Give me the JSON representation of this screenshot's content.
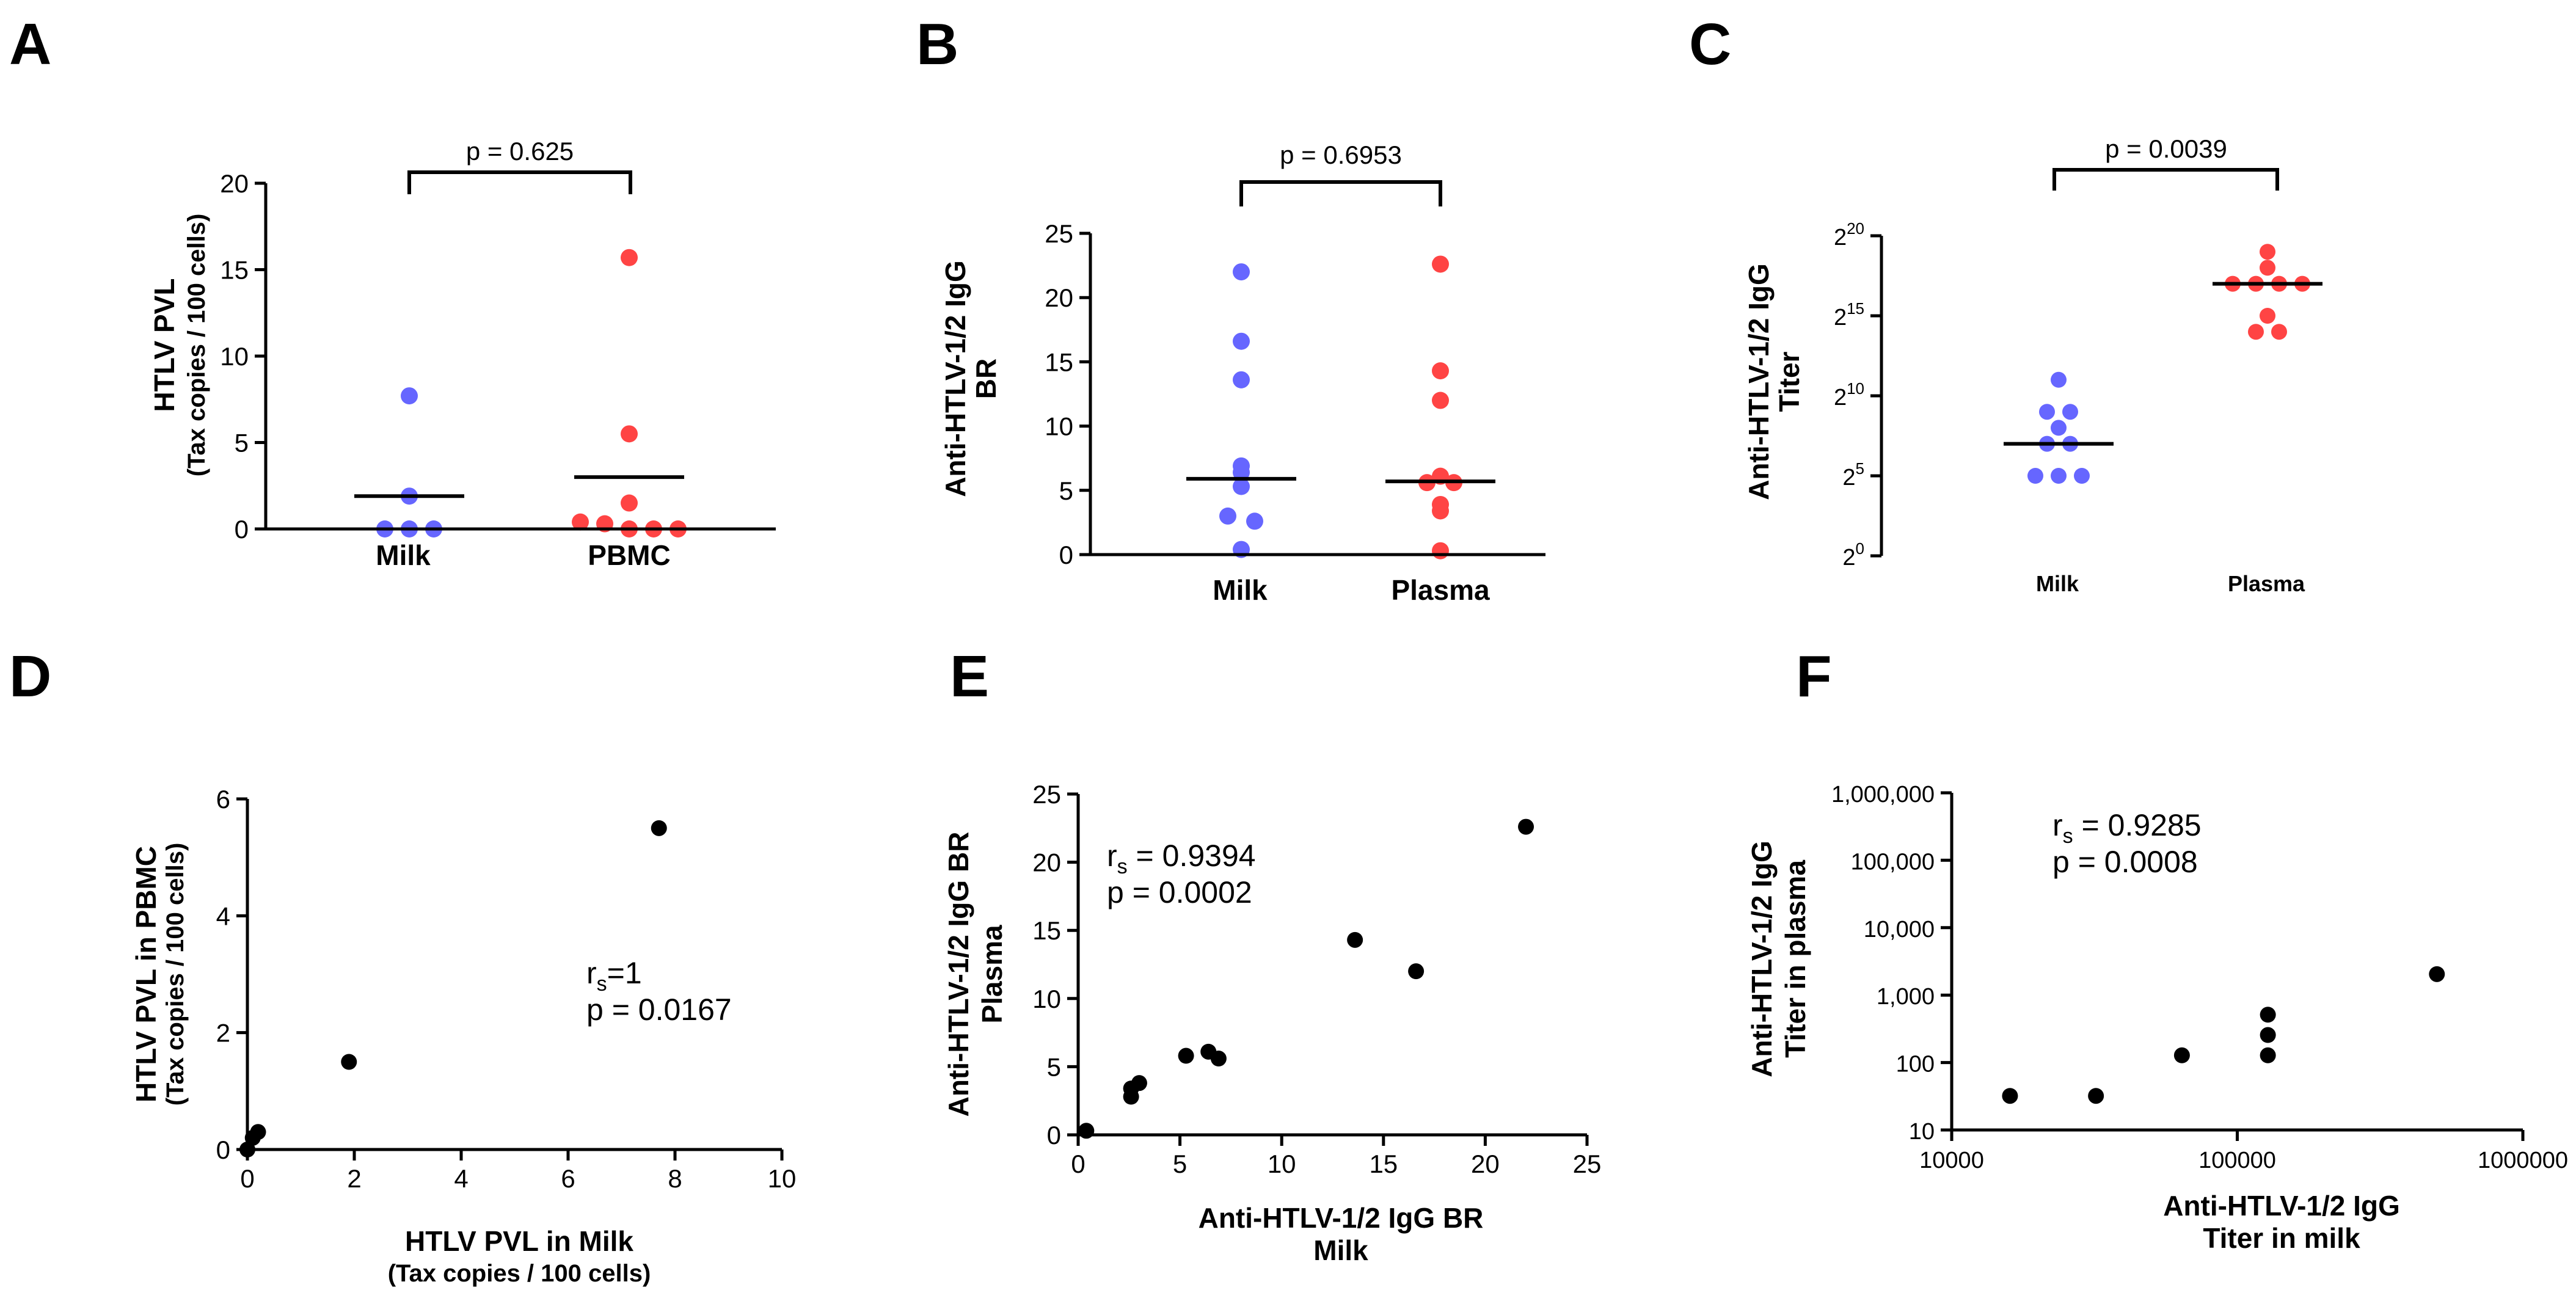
{
  "colors": {
    "milk": "#6666ff",
    "other": "#ff4444",
    "black": "#000000"
  },
  "chart_data": [
    {
      "panel": "A",
      "type": "scatter",
      "categories": [
        "Milk",
        "PBMC"
      ],
      "ylabel": [
        "HTLV PVL",
        "(Tax copies / 100 cells)"
      ],
      "ylim": [
        0,
        20
      ],
      "yticks": [
        "0",
        "5",
        "10",
        "15",
        "20"
      ],
      "ytick_values": [
        0,
        5,
        10,
        15,
        20
      ],
      "series": [
        {
          "category": "Milk",
          "values": [
            7.7,
            1.9,
            0,
            0,
            0
          ],
          "median": 1.9
        },
        {
          "category": "PBMC",
          "values": [
            15.7,
            5.5,
            1.5,
            0.4,
            0.3,
            0,
            0,
            0
          ],
          "median": 3.0
        }
      ],
      "pvalue": "p = 0.625"
    },
    {
      "panel": "B",
      "type": "scatter",
      "categories": [
        "Milk",
        "Plasma"
      ],
      "ylabel": [
        "Anti-HTLV-1/2 IgG",
        "BR"
      ],
      "ylim": [
        0,
        25
      ],
      "yticks": [
        "0",
        "5",
        "10",
        "15",
        "20",
        "25"
      ],
      "ytick_values": [
        0,
        5,
        10,
        15,
        20,
        25
      ],
      "series": [
        {
          "category": "Milk",
          "values": [
            22.0,
            16.6,
            13.6,
            6.9,
            6.4,
            5.3,
            3.0,
            2.6,
            0.4
          ],
          "median": 5.9
        },
        {
          "category": "Plasma",
          "values": [
            22.6,
            14.3,
            12.0,
            6.1,
            5.6,
            5.6,
            3.9,
            3.4,
            0.3
          ],
          "median": 5.7
        }
      ],
      "pvalue": "p = 0.6953"
    },
    {
      "panel": "C",
      "type": "scatter",
      "categories": [
        "Milk",
        "Plasma"
      ],
      "ylabel": [
        "Anti-HTLV-1/2 IgG",
        "Titer"
      ],
      "scale": "log2",
      "ylim_exp": [
        0,
        20
      ],
      "yticks": [
        {
          "base": "2",
          "exp": "0"
        },
        {
          "base": "2",
          "exp": "5"
        },
        {
          "base": "2",
          "exp": "10"
        },
        {
          "base": "2",
          "exp": "15"
        },
        {
          "base": "2",
          "exp": "20"
        }
      ],
      "ytick_exps": [
        0,
        5,
        10,
        15,
        20
      ],
      "series": [
        {
          "category": "Milk",
          "values_log2": [
            11,
            9,
            9,
            8,
            7,
            7,
            5,
            5,
            5
          ],
          "median_log2": 7
        },
        {
          "category": "Plasma",
          "values_log2": [
            19,
            18,
            17,
            17,
            17,
            17,
            15,
            14,
            14
          ],
          "median_log2": 17
        }
      ],
      "pvalue": "p = 0.0039"
    },
    {
      "panel": "D",
      "type": "scatter",
      "xlabel": "HTLV PVL in Milk",
      "xlabel_sub": "(Tax copies / 100 cells)",
      "ylabel": "HTLV PVL in PBMC",
      "ylabel_sub": "(Tax copies / 100 cells)",
      "xlim": [
        0,
        10
      ],
      "ylim": [
        0,
        6
      ],
      "xticks": [
        "0",
        "2",
        "4",
        "6",
        "8",
        "10"
      ],
      "xtick_values": [
        0,
        2,
        4,
        6,
        8,
        10
      ],
      "yticks": [
        "0",
        "2",
        "4",
        "6"
      ],
      "ytick_values": [
        0,
        2,
        4,
        6
      ],
      "points": [
        [
          7.7,
          5.5
        ],
        [
          1.9,
          1.5
        ],
        [
          0.2,
          0.3
        ],
        [
          0.1,
          0.2
        ],
        [
          0,
          0
        ]
      ],
      "stat_r": "r",
      "stat_sub": "s",
      "stat_r_value": "=1",
      "stat_p": "p = 0.0167"
    },
    {
      "panel": "E",
      "type": "scatter",
      "xlabel": "Anti-HTLV-1/2 IgG BR",
      "xlabel2": "Milk",
      "ylabel": "Anti-HTLV-1/2 IgG BR",
      "ylabel2": "Plasma",
      "xlim": [
        0,
        25
      ],
      "ylim": [
        0,
        25
      ],
      "xticks": [
        "0",
        "5",
        "10",
        "15",
        "20",
        "25"
      ],
      "xtick_values": [
        0,
        5,
        10,
        15,
        20,
        25
      ],
      "yticks": [
        "0",
        "5",
        "10",
        "15",
        "20",
        "25"
      ],
      "ytick_values": [
        0,
        5,
        10,
        15,
        20,
        25
      ],
      "points": [
        [
          22.0,
          22.6
        ],
        [
          13.6,
          14.3
        ],
        [
          16.6,
          12.0
        ],
        [
          6.4,
          6.1
        ],
        [
          5.3,
          5.8
        ],
        [
          6.9,
          5.6
        ],
        [
          3.0,
          3.8
        ],
        [
          2.6,
          3.4
        ],
        [
          2.6,
          2.8
        ],
        [
          0.4,
          0.3
        ]
      ],
      "stat_r": "r",
      "stat_sub": "s",
      "stat_r_value": " = 0.9394",
      "stat_p": "p = 0.0002"
    },
    {
      "panel": "F",
      "type": "scatter",
      "scale": "log",
      "xlabel": "Anti-HTLV-1/2 IgG",
      "xlabel2": "Titer in milk",
      "ylabel": "Anti-HTLV-1/2 IgG",
      "ylabel2": "Titer in plasma",
      "xlim": [
        10000,
        1000000
      ],
      "ylim": [
        10,
        1000000
      ],
      "xticks": [
        "10000",
        "100000",
        "1000000"
      ],
      "xtick_values": [
        10000,
        100000,
        1000000
      ],
      "yticks": [
        "10",
        "100",
        "1,000",
        "10,000",
        "100,000",
        "1,000,000"
      ],
      "ytick_values": [
        10,
        100,
        1000,
        10000,
        100000,
        1000000
      ],
      "points": [
        [
          16000,
          32
        ],
        [
          32000,
          32
        ],
        [
          64000,
          128
        ],
        [
          128000,
          128
        ],
        [
          128000,
          256
        ],
        [
          128000,
          512
        ],
        [
          500000,
          2048
        ]
      ],
      "stat_r": "r",
      "stat_sub": "s",
      "stat_r_value": " = 0.9285",
      "stat_p": "p = 0.0008"
    }
  ]
}
